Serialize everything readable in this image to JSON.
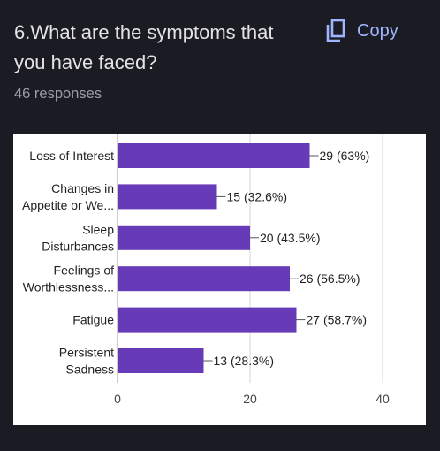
{
  "question": {
    "title": "6.What are the symptoms that you have faced?"
  },
  "copy_button": {
    "label": "Copy",
    "icon": "copy-icon"
  },
  "responses": {
    "text": "46 responses"
  },
  "colors": {
    "accent": "#9fb5ff",
    "bar": "#673ab7",
    "background": "#1b1c23"
  },
  "chart_data": {
    "type": "bar",
    "orientation": "horizontal",
    "categories": [
      [
        "Loss of Interest"
      ],
      [
        "Changes in",
        "Appetite or We..."
      ],
      [
        "Sleep",
        "Disturbances"
      ],
      [
        "Feelings of",
        "Worthlessness..."
      ],
      [
        "Fatigue"
      ],
      [
        "Persistent",
        "Sadness"
      ]
    ],
    "values": [
      29,
      15,
      20,
      26,
      27,
      13
    ],
    "data_labels": [
      "29 (63%)",
      "15 (32.6%)",
      "20 (43.5%)",
      "26 (56.5%)",
      "27 (58.7%)",
      "13 (28.3%)"
    ],
    "x_ticks": [
      0,
      20,
      40
    ],
    "xlim": [
      0,
      40
    ],
    "grid": true
  }
}
